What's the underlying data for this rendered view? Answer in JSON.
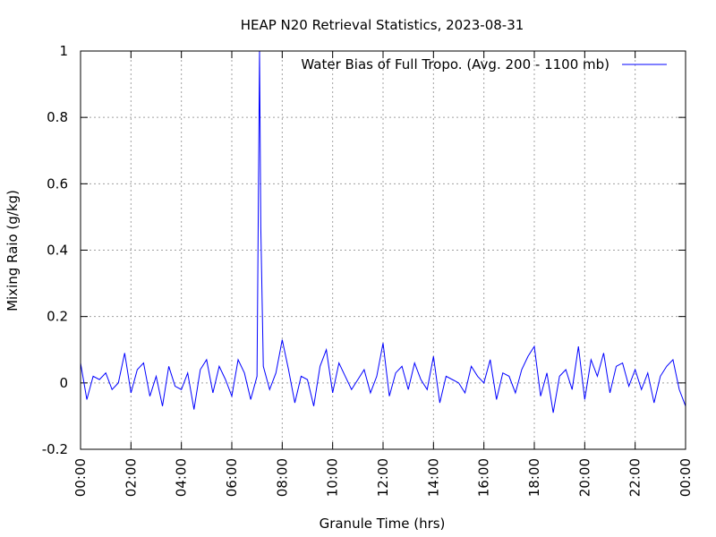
{
  "chart_data": {
    "type": "line",
    "title": "HEAP N20 Retrieval Statistics, 2023-08-31",
    "x_label": "Granule Time (hrs)",
    "y_label": "Mixing Raio (g/kg)",
    "xlim": [
      0,
      24
    ],
    "ylim": [
      -0.2,
      1
    ],
    "xticks": [
      {
        "value": 0,
        "label": "00:00"
      },
      {
        "value": 2,
        "label": "02:00"
      },
      {
        "value": 4,
        "label": "04:00"
      },
      {
        "value": 6,
        "label": "06:00"
      },
      {
        "value": 8,
        "label": "08:00"
      },
      {
        "value": 10,
        "label": "10:00"
      },
      {
        "value": 12,
        "label": "12:00"
      },
      {
        "value": 14,
        "label": "14:00"
      },
      {
        "value": 16,
        "label": "16:00"
      },
      {
        "value": 18,
        "label": "18:00"
      },
      {
        "value": 20,
        "label": "20:00"
      },
      {
        "value": 22,
        "label": "22:00"
      },
      {
        "value": 24,
        "label": "00:00"
      }
    ],
    "yticks": [
      -0.2,
      0,
      0.2,
      0.4,
      0.6,
      0.8,
      1
    ],
    "grid": true,
    "legend_position": "top-right",
    "x": [
      0,
      0.25,
      0.5,
      0.75,
      1,
      1.25,
      1.5,
      1.75,
      2,
      2.25,
      2.5,
      2.75,
      3,
      3.25,
      3.5,
      3.75,
      4,
      4.25,
      4.5,
      4.75,
      5,
      5.25,
      5.5,
      5.75,
      6,
      6.25,
      6.5,
      6.75,
      7,
      7.1,
      7.15,
      7.25,
      7.5,
      7.75,
      8,
      8.25,
      8.5,
      8.75,
      9,
      9.25,
      9.5,
      9.75,
      10,
      10.25,
      10.5,
      10.75,
      11,
      11.25,
      11.5,
      11.75,
      12,
      12.25,
      12.5,
      12.75,
      13,
      13.25,
      13.5,
      13.75,
      14,
      14.25,
      14.5,
      14.75,
      15,
      15.25,
      15.5,
      15.75,
      16,
      16.25,
      16.5,
      16.75,
      17,
      17.25,
      17.5,
      17.75,
      18,
      18.25,
      18.5,
      18.75,
      19,
      19.25,
      19.5,
      19.75,
      20,
      20.25,
      20.5,
      20.75,
      21,
      21.25,
      21.5,
      21.75,
      22,
      22.25,
      22.5,
      22.75,
      23,
      23.25,
      23.5,
      23.75,
      24
    ],
    "series": [
      {
        "name": "Water Bias of Full Tropo. (Avg. 200 - 1100 mb)",
        "color": "#0000ff",
        "values": [
          0.06,
          -0.05,
          0.02,
          0.01,
          0.03,
          -0.02,
          0.0,
          0.09,
          -0.03,
          0.04,
          0.06,
          -0.04,
          0.02,
          -0.07,
          0.05,
          -0.01,
          -0.02,
          0.03,
          -0.08,
          0.04,
          0.07,
          -0.03,
          0.05,
          0.01,
          -0.04,
          0.07,
          0.03,
          -0.05,
          0.02,
          1.0,
          0.47,
          0.05,
          -0.02,
          0.03,
          0.13,
          0.04,
          -0.06,
          0.02,
          0.01,
          -0.07,
          0.05,
          0.1,
          -0.03,
          0.06,
          0.02,
          -0.02,
          0.01,
          0.04,
          -0.03,
          0.02,
          0.12,
          -0.04,
          0.03,
          0.05,
          -0.02,
          0.06,
          0.01,
          -0.02,
          0.08,
          -0.06,
          0.02,
          0.01,
          0.0,
          -0.03,
          0.05,
          0.02,
          0.0,
          0.07,
          -0.05,
          0.03,
          0.02,
          -0.03,
          0.04,
          0.08,
          0.11,
          -0.04,
          0.03,
          -0.09,
          0.02,
          0.04,
          -0.02,
          0.11,
          -0.05,
          0.07,
          0.02,
          0.09,
          -0.03,
          0.05,
          0.06,
          -0.01,
          0.04,
          -0.02,
          0.03,
          -0.06,
          0.02,
          0.05,
          0.07,
          -0.02,
          -0.07
        ]
      }
    ]
  }
}
